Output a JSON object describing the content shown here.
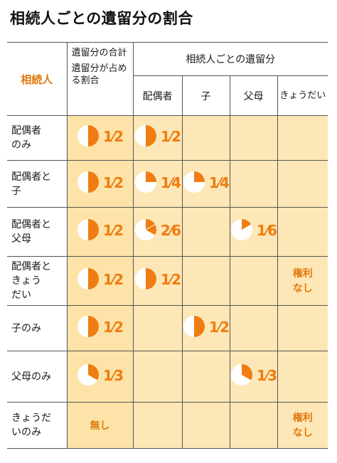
{
  "title": "相続人ごとの遺留分の割合",
  "header": {
    "heir": "相続人",
    "total_line1": "遺留分の合計",
    "total_line2": "遺留分が占める割合",
    "group": "相続人ごとの遺留分",
    "spouse": "配偶者",
    "child": "子",
    "parents": "父母",
    "siblings": "きょうだい"
  },
  "colors": {
    "accent": "#ef7d11",
    "cell_bg": "#fde7b6",
    "label_orange": "#e0790e"
  },
  "rows": [
    {
      "label": "配偶者のみ",
      "total": {
        "n": 1,
        "d": 2,
        "text": "1⁄2"
      },
      "spouse": {
        "n": 1,
        "d": 2,
        "text": "1⁄2"
      },
      "child": null,
      "parents": null,
      "siblings": null
    },
    {
      "label": "配偶者と子",
      "total": {
        "n": 1,
        "d": 2,
        "text": "1⁄2"
      },
      "spouse": {
        "n": 1,
        "d": 4,
        "text": "1⁄4"
      },
      "child": {
        "n": 1,
        "d": 4,
        "text": "1⁄4"
      },
      "parents": null,
      "siblings": null
    },
    {
      "label": "配偶者と父母",
      "total": {
        "n": 1,
        "d": 2,
        "text": "1⁄2"
      },
      "spouse": {
        "n": 2,
        "d": 6,
        "text": "2⁄6"
      },
      "child": null,
      "parents": {
        "n": 1,
        "d": 6,
        "text": "1⁄6"
      },
      "siblings": null
    },
    {
      "label": "配偶者ときょうだい",
      "total": {
        "n": 1,
        "d": 2,
        "text": "1⁄2"
      },
      "spouse": {
        "n": 1,
        "d": 2,
        "text": "1⁄2"
      },
      "child": null,
      "parents": null,
      "siblings": {
        "text": "権利なし"
      }
    },
    {
      "label": "子のみ",
      "total": {
        "n": 1,
        "d": 2,
        "text": "1⁄2"
      },
      "spouse": null,
      "child": {
        "n": 1,
        "d": 2,
        "text": "1⁄2"
      },
      "parents": null,
      "siblings": null
    },
    {
      "label": "父母のみ",
      "total": {
        "n": 1,
        "d": 3,
        "text": "1⁄3"
      },
      "spouse": null,
      "child": null,
      "parents": {
        "n": 1,
        "d": 3,
        "text": "1⁄3"
      },
      "siblings": null
    },
    {
      "label": "きょうだいのみ",
      "total": {
        "text": "無し"
      },
      "spouse": null,
      "child": null,
      "parents": null,
      "siblings": {
        "text": "権利なし"
      }
    }
  ]
}
